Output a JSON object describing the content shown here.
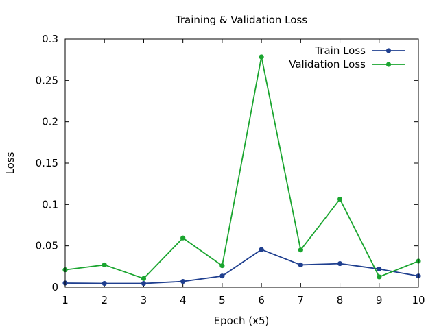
{
  "chart_data": {
    "type": "line",
    "title": "Training & Validation Loss",
    "xlabel": "Epoch (x5)",
    "ylabel": "Loss",
    "x": [
      1,
      2,
      3,
      4,
      5,
      6,
      7,
      8,
      9,
      10
    ],
    "xlim": [
      1,
      10
    ],
    "ylim": [
      0,
      0.3
    ],
    "xticks": [
      1,
      2,
      3,
      4,
      5,
      6,
      7,
      8,
      9,
      10
    ],
    "yticks": [
      0,
      0.05,
      0.1,
      0.15,
      0.2,
      0.25,
      0.3
    ],
    "ytick_labels": [
      "0",
      "0.05",
      "0.1",
      "0.15",
      "0.2",
      "0.25",
      "0.3"
    ],
    "grid": false,
    "legend_position": "top-right",
    "series": [
      {
        "name": "Train Loss",
        "color": "#1f3f8f",
        "values": [
          0.005,
          0.0045,
          0.0045,
          0.007,
          0.0135,
          0.0455,
          0.027,
          0.0285,
          0.022,
          0.0135
        ]
      },
      {
        "name": "Validation Loss",
        "color": "#1aa52f",
        "values": [
          0.021,
          0.027,
          0.0105,
          0.0595,
          0.026,
          0.2785,
          0.045,
          0.1065,
          0.0125,
          0.0315
        ]
      }
    ]
  }
}
